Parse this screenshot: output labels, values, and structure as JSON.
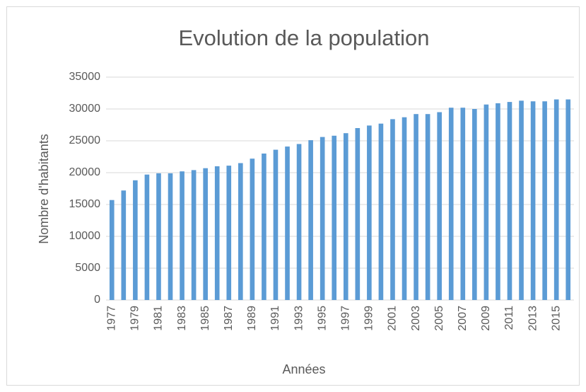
{
  "chart_data": {
    "type": "bar",
    "title": "Evolution de la population",
    "x_label": "Années",
    "y_label": "Nombre d'habitants",
    "categories": [
      "1977",
      null,
      "1979",
      null,
      "1981",
      null,
      "1983",
      null,
      "1985",
      null,
      "1987",
      null,
      "1989",
      null,
      "1991",
      null,
      "1993",
      null,
      "1995",
      null,
      "1997",
      null,
      "1999",
      null,
      "2001",
      null,
      "2003",
      null,
      "2005",
      null,
      "2007",
      null,
      "2009",
      null,
      "2011",
      null,
      "2013",
      null,
      "2015",
      null
    ],
    "values": [
      15700,
      17200,
      18800,
      19700,
      19900,
      19900,
      20200,
      20400,
      20700,
      21000,
      21100,
      21500,
      22200,
      23000,
      23600,
      24100,
      24500,
      25100,
      25600,
      25800,
      26200,
      27000,
      27400,
      27700,
      28400,
      28700,
      29200,
      29200,
      29500,
      30200,
      30200,
      30000,
      30700,
      30900,
      31100,
      31300,
      31200,
      31200,
      31500,
      31500
    ],
    "color": "#5b9bd5",
    "ylim": [
      0,
      35000
    ],
    "yticks": [
      0,
      5000,
      10000,
      15000,
      20000,
      25000,
      30000,
      35000
    ],
    "grid": true
  }
}
